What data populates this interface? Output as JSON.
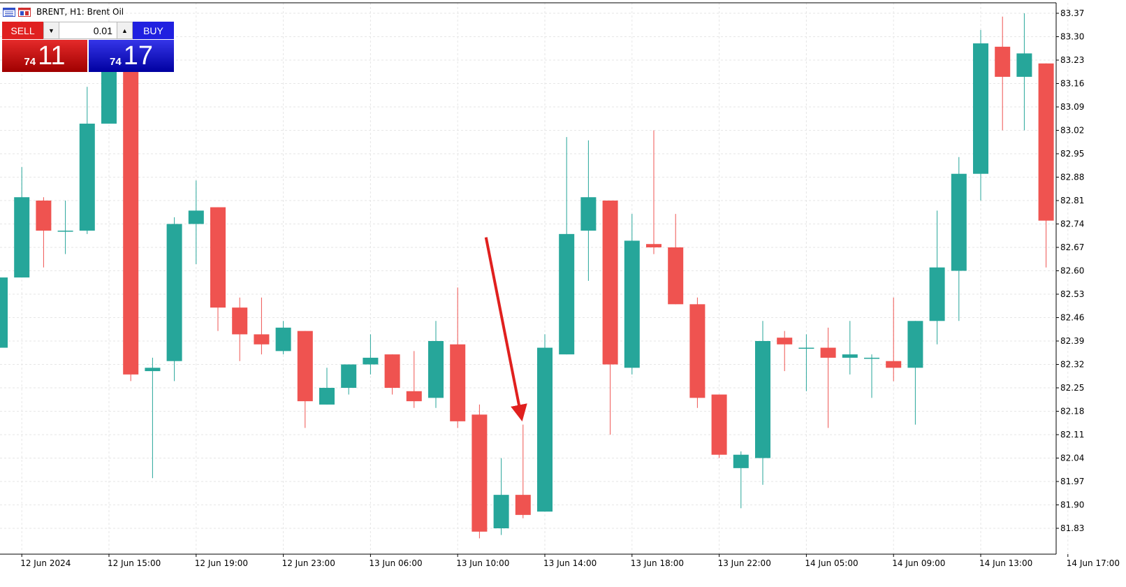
{
  "header": {
    "symbol_title": "BRENT, H1:  Brent Oil"
  },
  "trade_panel": {
    "sell_label": "SELL",
    "buy_label": "BUY",
    "lot_value": "0.01",
    "sell_price_small": "74",
    "sell_price_big": "11",
    "buy_price_small": "74",
    "buy_price_big": "17"
  },
  "colors": {
    "bull": "#26a69a",
    "bear": "#ef5350",
    "arrow": "#e0201e",
    "grid": "#e6e6e6"
  },
  "chart_data": {
    "type": "candlestick",
    "symbol": "BRENT",
    "timeframe": "H1",
    "grid": true,
    "ylim": [
      81.79,
      83.39
    ],
    "y_ticks": [
      "83.37",
      "83.30",
      "83.23",
      "83.16",
      "83.09",
      "83.02",
      "82.95",
      "82.88",
      "82.81",
      "82.74",
      "82.67",
      "82.60",
      "82.53",
      "82.46",
      "82.39",
      "82.32",
      "82.25",
      "82.18",
      "82.11",
      "82.04",
      "81.97",
      "81.90",
      "81.83"
    ],
    "x_ticks": [
      {
        "label": "12 Jun 2024",
        "index": 1
      },
      {
        "label": "12 Jun 15:00",
        "index": 5
      },
      {
        "label": "12 Jun 19:00",
        "index": 9
      },
      {
        "label": "12 Jun 23:00",
        "index": 13
      },
      {
        "label": "13 Jun 06:00",
        "index": 17
      },
      {
        "label": "13 Jun 10:00",
        "index": 21
      },
      {
        "label": "13 Jun 14:00",
        "index": 25
      },
      {
        "label": "13 Jun 18:00",
        "index": 29
      },
      {
        "label": "13 Jun 22:00",
        "index": 33
      },
      {
        "label": "14 Jun 05:00",
        "index": 37
      },
      {
        "label": "14 Jun 09:00",
        "index": 41
      },
      {
        "label": "14 Jun 13:00",
        "index": 45
      },
      {
        "label": "14 Jun 17:00",
        "index": 49
      }
    ],
    "candles": [
      {
        "o": 82.37,
        "h": 82.58,
        "l": 82.37,
        "c": 82.58
      },
      {
        "o": 82.58,
        "h": 82.91,
        "l": 82.58,
        "c": 82.82
      },
      {
        "o": 82.81,
        "h": 82.82,
        "l": 82.61,
        "c": 82.72
      },
      {
        "o": 82.72,
        "h": 82.81,
        "l": 82.65,
        "c": 82.72
      },
      {
        "o": 82.72,
        "h": 83.15,
        "l": 82.71,
        "c": 83.04
      },
      {
        "o": 83.04,
        "h": 83.25,
        "l": 83.04,
        "c": 83.25
      },
      {
        "o": 83.25,
        "h": 83.25,
        "l": 82.27,
        "c": 82.29
      },
      {
        "o": 82.3,
        "h": 82.34,
        "l": 81.98,
        "c": 82.31
      },
      {
        "o": 82.33,
        "h": 82.76,
        "l": 82.27,
        "c": 82.74
      },
      {
        "o": 82.74,
        "h": 82.87,
        "l": 82.62,
        "c": 82.78
      },
      {
        "o": 82.79,
        "h": 82.79,
        "l": 82.42,
        "c": 82.49
      },
      {
        "o": 82.49,
        "h": 82.52,
        "l": 82.33,
        "c": 82.41
      },
      {
        "o": 82.41,
        "h": 82.52,
        "l": 82.35,
        "c": 82.38
      },
      {
        "o": 82.36,
        "h": 82.45,
        "l": 82.35,
        "c": 82.43
      },
      {
        "o": 82.42,
        "h": 82.42,
        "l": 82.13,
        "c": 82.21
      },
      {
        "o": 82.2,
        "h": 82.31,
        "l": 82.2,
        "c": 82.25
      },
      {
        "o": 82.25,
        "h": 82.32,
        "l": 82.23,
        "c": 82.32
      },
      {
        "o": 82.32,
        "h": 82.41,
        "l": 82.29,
        "c": 82.34
      },
      {
        "o": 82.35,
        "h": 82.35,
        "l": 82.23,
        "c": 82.25
      },
      {
        "o": 82.24,
        "h": 82.36,
        "l": 82.19,
        "c": 82.21
      },
      {
        "o": 82.22,
        "h": 82.45,
        "l": 82.19,
        "c": 82.39
      },
      {
        "o": 82.38,
        "h": 82.55,
        "l": 82.13,
        "c": 82.15
      },
      {
        "o": 82.17,
        "h": 82.2,
        "l": 81.8,
        "c": 81.82
      },
      {
        "o": 81.83,
        "h": 82.04,
        "l": 81.81,
        "c": 81.93
      },
      {
        "o": 81.93,
        "h": 82.14,
        "l": 81.86,
        "c": 81.87
      },
      {
        "o": 81.88,
        "h": 82.41,
        "l": 81.88,
        "c": 82.37
      },
      {
        "o": 82.35,
        "h": 83.0,
        "l": 82.35,
        "c": 82.71
      },
      {
        "o": 82.72,
        "h": 82.99,
        "l": 82.57,
        "c": 82.82
      },
      {
        "o": 82.81,
        "h": 82.81,
        "l": 82.11,
        "c": 82.32
      },
      {
        "o": 82.31,
        "h": 82.77,
        "l": 82.29,
        "c": 82.69
      },
      {
        "o": 82.68,
        "h": 83.02,
        "l": 82.65,
        "c": 82.67
      },
      {
        "o": 82.67,
        "h": 82.77,
        "l": 82.5,
        "c": 82.5
      },
      {
        "o": 82.5,
        "h": 82.52,
        "l": 82.19,
        "c": 82.22
      },
      {
        "o": 82.23,
        "h": 82.23,
        "l": 82.04,
        "c": 82.05
      },
      {
        "o": 82.01,
        "h": 82.06,
        "l": 81.89,
        "c": 82.05
      },
      {
        "o": 82.04,
        "h": 82.45,
        "l": 81.96,
        "c": 82.39
      },
      {
        "o": 82.4,
        "h": 82.42,
        "l": 82.3,
        "c": 82.38
      },
      {
        "o": 82.37,
        "h": 82.41,
        "l": 82.24,
        "c": 82.37
      },
      {
        "o": 82.37,
        "h": 82.43,
        "l": 82.13,
        "c": 82.34
      },
      {
        "o": 82.34,
        "h": 82.45,
        "l": 82.29,
        "c": 82.35
      },
      {
        "o": 82.34,
        "h": 82.35,
        "l": 82.22,
        "c": 82.34
      },
      {
        "o": 82.33,
        "h": 82.52,
        "l": 82.27,
        "c": 82.31
      },
      {
        "o": 82.31,
        "h": 82.45,
        "l": 82.14,
        "c": 82.45
      },
      {
        "o": 82.45,
        "h": 82.78,
        "l": 82.38,
        "c": 82.61
      },
      {
        "o": 82.6,
        "h": 82.94,
        "l": 82.45,
        "c": 82.89
      },
      {
        "o": 82.89,
        "h": 83.32,
        "l": 82.81,
        "c": 83.28
      },
      {
        "o": 83.27,
        "h": 83.36,
        "l": 83.02,
        "c": 83.18
      },
      {
        "o": 83.18,
        "h": 83.37,
        "l": 83.02,
        "c": 83.25
      },
      {
        "o": 83.22,
        "h": 83.22,
        "l": 82.61,
        "c": 82.75
      }
    ],
    "annotations": [
      {
        "type": "arrow",
        "color": "#e0201e",
        "from": {
          "index": 22.3,
          "price": 82.7
        },
        "to": {
          "index": 23.9,
          "price": 82.17
        }
      }
    ]
  }
}
